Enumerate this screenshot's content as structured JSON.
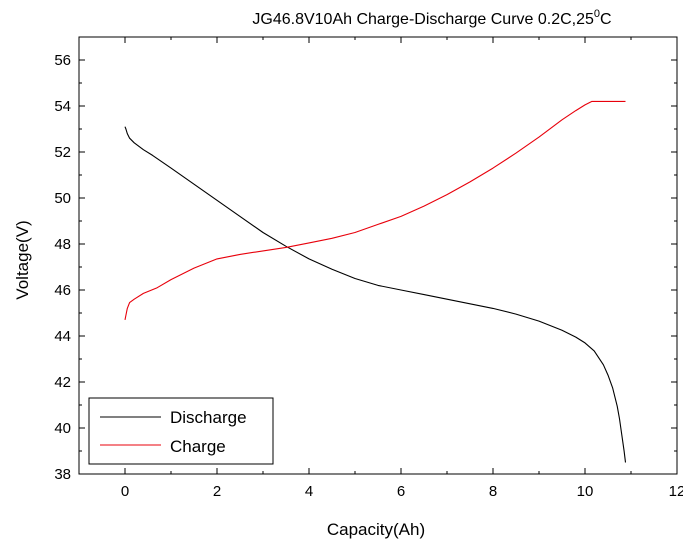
{
  "chart_data": {
    "type": "line",
    "title_main": "JG46.8V10Ah Charge-Discharge Curve  0.2C,25",
    "title_sup": "0",
    "title_unit": "C",
    "xlabel": "Capacity(Ah)",
    "ylabel": "Voltage(V)",
    "xlim": [
      -1,
      12
    ],
    "ylim": [
      38,
      57
    ],
    "xticks": [
      0,
      2,
      4,
      6,
      8,
      10,
      12
    ],
    "yticks": [
      38,
      40,
      42,
      44,
      46,
      48,
      50,
      52,
      54,
      56
    ],
    "grid": false,
    "legend_position": "bottom-left",
    "series": [
      {
        "name": "Discharge",
        "color": "#000000",
        "x": [
          0.0,
          0.02,
          0.05,
          0.1,
          0.2,
          0.4,
          0.6,
          1.0,
          1.5,
          2.0,
          2.5,
          3.0,
          3.5,
          4.0,
          4.5,
          5.0,
          5.5,
          6.0,
          6.5,
          7.0,
          7.5,
          8.0,
          8.5,
          9.0,
          9.5,
          9.8,
          10.0,
          10.2,
          10.4,
          10.5,
          10.6,
          10.7,
          10.75,
          10.8,
          10.85,
          10.88
        ],
        "y": [
          53.1,
          53.0,
          52.8,
          52.6,
          52.4,
          52.1,
          51.85,
          51.3,
          50.6,
          49.9,
          49.2,
          48.5,
          47.9,
          47.35,
          46.9,
          46.5,
          46.2,
          46.0,
          45.8,
          45.6,
          45.4,
          45.2,
          44.95,
          44.65,
          44.25,
          43.95,
          43.7,
          43.35,
          42.75,
          42.3,
          41.75,
          40.95,
          40.4,
          39.7,
          39.0,
          38.5
        ]
      },
      {
        "name": "Charge",
        "color": "#e8000b",
        "x": [
          0.0,
          0.02,
          0.05,
          0.1,
          0.2,
          0.4,
          0.7,
          1.0,
          1.5,
          2.0,
          2.5,
          3.0,
          3.5,
          4.0,
          4.5,
          5.0,
          5.5,
          6.0,
          6.5,
          7.0,
          7.5,
          8.0,
          8.5,
          9.0,
          9.5,
          9.8,
          10.0,
          10.15,
          10.2,
          10.5,
          10.88
        ],
        "y": [
          44.7,
          44.9,
          45.2,
          45.45,
          45.6,
          45.85,
          46.1,
          46.45,
          46.95,
          47.35,
          47.55,
          47.7,
          47.85,
          48.05,
          48.25,
          48.5,
          48.85,
          49.2,
          49.65,
          50.15,
          50.7,
          51.3,
          51.95,
          52.65,
          53.4,
          53.8,
          54.05,
          54.2,
          54.2,
          54.2,
          54.2
        ]
      }
    ]
  }
}
